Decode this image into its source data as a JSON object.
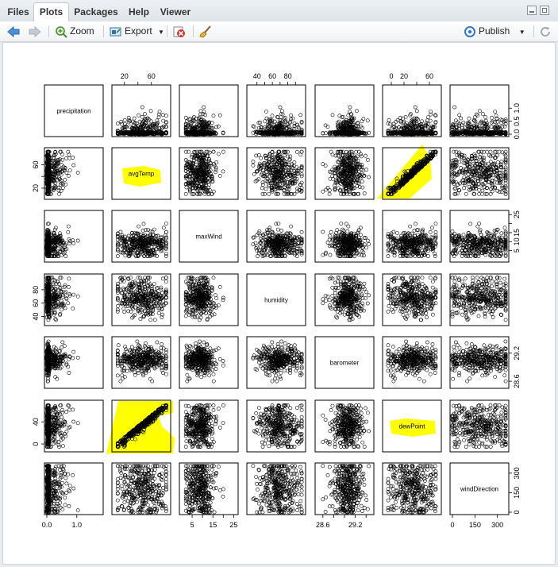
{
  "tabs": [
    {
      "label": "Files",
      "active": false
    },
    {
      "label": "Plots",
      "active": true
    },
    {
      "label": "Packages",
      "active": false
    },
    {
      "label": "Help",
      "active": false
    },
    {
      "label": "Viewer",
      "active": false
    }
  ],
  "toolbar": {
    "zoom_label": "Zoom",
    "export_label": "Export",
    "publish_label": "Publish"
  },
  "icons": {
    "back": "arrow-left-icon",
    "forward": "arrow-right-icon",
    "zoom": "magnifier-icon",
    "export": "export-icon",
    "remove": "remove-plot-icon",
    "clear": "broom-icon",
    "publish": "publish-icon",
    "refresh": "refresh-icon"
  },
  "highlight_color": "#ffff00",
  "chart_data": {
    "type": "scatter",
    "variables": [
      "precipitation",
      "avgTemp",
      "maxWind",
      "humidity",
      "barometer",
      "dewPoint",
      "windDirection"
    ],
    "axis_ranges": {
      "precipitation": [
        0,
        1.8
      ],
      "avgTemp": [
        5,
        85
      ],
      "maxWind": [
        0,
        26
      ],
      "humidity": [
        30,
        100
      ],
      "barometer": [
        28.5,
        29.5
      ],
      "dewPoint": [
        -10,
        75
      ],
      "windDirection": [
        0,
        360
      ]
    },
    "ticks": {
      "precipitation": [
        {
          "v": 0.0,
          "label": "0.0"
        },
        {
          "v": 1.0,
          "label": "1.0"
        }
      ],
      "avgTemp": [
        {
          "v": 20,
          "label": "20"
        },
        {
          "v": 40,
          "label": ""
        },
        {
          "v": 60,
          "label": "60"
        }
      ],
      "maxWind": [
        {
          "v": 5,
          "label": "5"
        },
        {
          "v": 10,
          "label": ""
        },
        {
          "v": 15,
          "label": "15"
        },
        {
          "v": 20,
          "label": ""
        },
        {
          "v": 25,
          "label": "25"
        }
      ],
      "humidity": [
        {
          "v": 40,
          "label": "40"
        },
        {
          "v": 50,
          "label": ""
        },
        {
          "v": 60,
          "label": "60"
        },
        {
          "v": 70,
          "label": ""
        },
        {
          "v": 80,
          "label": "80"
        },
        {
          "v": 90,
          "label": ""
        }
      ],
      "barometer": [
        {
          "v": 28.6,
          "label": "28.6"
        },
        {
          "v": 28.8,
          "label": ""
        },
        {
          "v": 29.0,
          "label": ""
        },
        {
          "v": 29.2,
          "label": "29.2"
        },
        {
          "v": 29.4,
          "label": ""
        }
      ],
      "dewPoint": [
        {
          "v": 0,
          "label": "0"
        },
        {
          "v": 20,
          "label": "20"
        },
        {
          "v": 40,
          "label": ""
        },
        {
          "v": 60,
          "label": "60"
        }
      ],
      "windDirection": [
        {
          "v": 0,
          "label": "0"
        },
        {
          "v": 150,
          "label": "150"
        },
        {
          "v": 300,
          "label": "300"
        }
      ]
    },
    "left_ticks": {
      "avgTemp": [
        {
          "v": 20,
          "label": "20"
        },
        {
          "v": 40,
          "label": ""
        },
        {
          "v": 60,
          "label": "60"
        }
      ],
      "humidity": [
        {
          "v": 40,
          "label": "40"
        },
        {
          "v": 60,
          "label": "60"
        },
        {
          "v": 80,
          "label": "80"
        }
      ],
      "dewPoint": [
        {
          "v": 0,
          "label": "0"
        },
        {
          "v": 40,
          "label": "40"
        }
      ]
    },
    "right_ticks": {
      "precipitation": [
        {
          "v": 0.0,
          "label": "0.0"
        },
        {
          "v": 0.5,
          "label": "0.5"
        },
        {
          "v": 1.0,
          "label": "1.0"
        }
      ],
      "maxWind": [
        {
          "v": 5,
          "label": "5"
        },
        {
          "v": 10,
          "label": "10"
        },
        {
          "v": 15,
          "label": "15"
        },
        {
          "v": 20,
          "label": ""
        },
        {
          "v": 25,
          "label": "25"
        }
      ],
      "barometer": [
        {
          "v": 28.6,
          "label": "28.6"
        },
        {
          "v": 29.2,
          "label": "29.2"
        }
      ],
      "windDirection": [
        {
          "v": 0,
          "label": "0"
        },
        {
          "v": 150,
          "label": "150"
        },
        {
          "v": 300,
          "label": "300"
        }
      ]
    },
    "highlighted_panels": [
      {
        "row": "avgTemp",
        "col": "dewPoint"
      },
      {
        "row": "dewPoint",
        "col": "avgTemp"
      },
      {
        "row": "avgTemp",
        "col": "avgTemp"
      },
      {
        "row": "dewPoint",
        "col": "dewPoint"
      }
    ]
  }
}
